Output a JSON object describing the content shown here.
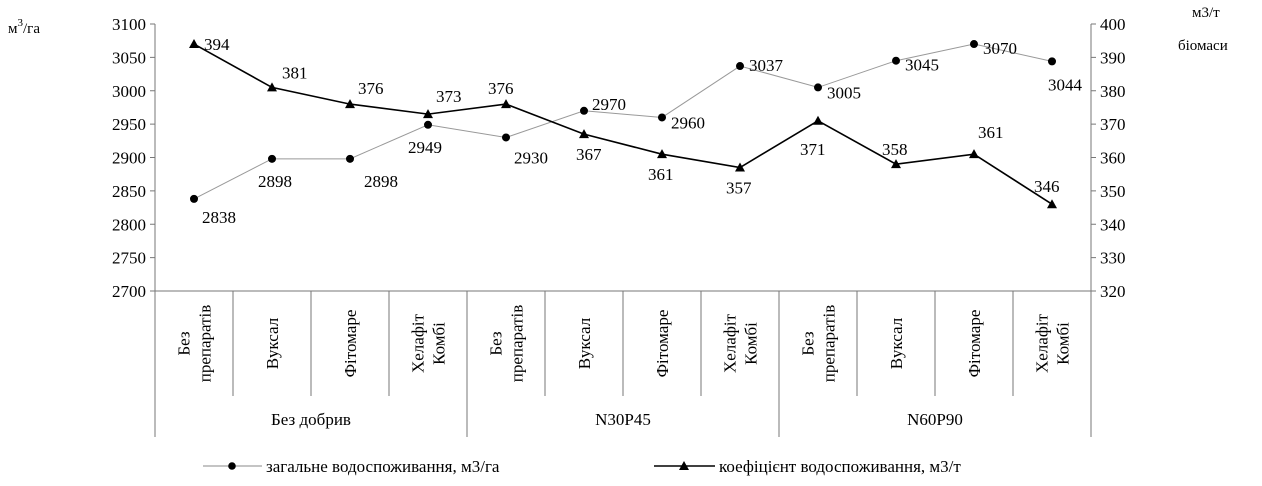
{
  "chart_data": {
    "type": "line",
    "y_left": {
      "label_base": "м",
      "label_sup": "3",
      "label_rest": "/га",
      "ylim": [
        2700,
        3100
      ],
      "ticks": [
        2700,
        2750,
        2800,
        2850,
        2900,
        2950,
        3000,
        3050,
        3100
      ]
    },
    "y_right": {
      "label_line1": "м3/т",
      "label_line2": "біомаси",
      "ylim": [
        320,
        400
      ],
      "ticks": [
        320,
        330,
        340,
        350,
        360,
        370,
        380,
        390,
        400
      ]
    },
    "categories": [
      [
        "Без",
        "препаратів"
      ],
      [
        "Вуксал"
      ],
      [
        "Фітомаре"
      ],
      [
        "Хелафіт",
        "Комбі"
      ],
      [
        "Без",
        "препаратів"
      ],
      [
        "Вуксал"
      ],
      [
        "Фітомаре"
      ],
      [
        "Хелафіт",
        "Комбі"
      ],
      [
        "Без",
        "препаратів"
      ],
      [
        "Вуксал"
      ],
      [
        "Фітомаре"
      ],
      [
        "Хелафіт",
        "Комбі"
      ]
    ],
    "groups": [
      "Без добрив",
      "N30P45",
      "N60P90"
    ],
    "series": [
      {
        "name": "загальне водоспоживання, м3/га",
        "axis": "left",
        "marker": "circle",
        "values": [
          2838,
          2898,
          2898,
          2949,
          2930,
          2970,
          2960,
          3037,
          3005,
          3045,
          3070,
          3044
        ]
      },
      {
        "name": "коефіцієнт водоспоживання, м3/т",
        "axis": "right",
        "marker": "triangle",
        "values": [
          394,
          381,
          376,
          373,
          376,
          367,
          361,
          357,
          371,
          358,
          361,
          346
        ]
      }
    ],
    "grid": false,
    "legend_position": "bottom"
  }
}
